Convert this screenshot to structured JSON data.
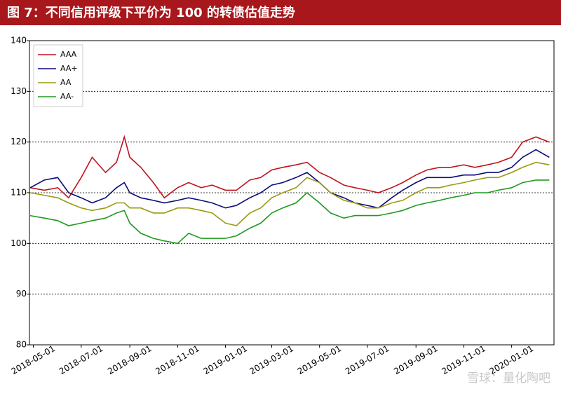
{
  "chart_data": {
    "type": "line",
    "title": "图 7：不同信用评级下平价为 100 的转债估值走势",
    "annotation": "雪球：量化陶吧",
    "x": [
      "2018-04-27",
      "2018-05-15",
      "2018-06-01",
      "2018-06-15",
      "2018-07-01",
      "2018-07-15",
      "2018-08-01",
      "2018-08-15",
      "2018-08-25",
      "2018-09-01",
      "2018-09-15",
      "2018-10-01",
      "2018-10-15",
      "2018-11-01",
      "2018-11-15",
      "2018-12-01",
      "2018-12-15",
      "2019-01-01",
      "2019-01-15",
      "2019-02-01",
      "2019-02-15",
      "2019-03-01",
      "2019-03-15",
      "2019-04-01",
      "2019-04-15",
      "2019-05-01",
      "2019-05-15",
      "2019-06-01",
      "2019-06-15",
      "2019-07-01",
      "2019-07-15",
      "2019-08-01",
      "2019-08-15",
      "2019-09-01",
      "2019-09-15",
      "2019-10-01",
      "2019-10-15",
      "2019-11-01",
      "2019-11-15",
      "2019-12-01",
      "2019-12-15",
      "2020-01-01",
      "2020-01-15",
      "2020-02-01",
      "2020-02-18"
    ],
    "series": [
      {
        "name": "AAA",
        "color": "#c0141e",
        "values": [
          111,
          110.5,
          111,
          109,
          113,
          117,
          114,
          116,
          121,
          117,
          115,
          112,
          109,
          111,
          112,
          111,
          111.5,
          110.5,
          110.5,
          112.5,
          113,
          114.5,
          115,
          115.5,
          116,
          114,
          113,
          111.5,
          111,
          110.5,
          110,
          111,
          112,
          113.5,
          114.5,
          115,
          115,
          115.5,
          115,
          115.5,
          116,
          117,
          120,
          121,
          120
        ]
      },
      {
        "name": "AA+",
        "color": "#0a0a78",
        "values": [
          111,
          112.5,
          113,
          110,
          109,
          108,
          109,
          111,
          112,
          110,
          109,
          108.5,
          108,
          108.5,
          109,
          108.5,
          108,
          107,
          107.5,
          109,
          110,
          111.5,
          112,
          113,
          114,
          112,
          110,
          109,
          108,
          107.5,
          107,
          109,
          110.5,
          112,
          113,
          113,
          113,
          113.5,
          113.5,
          114,
          114,
          115,
          117,
          118.5,
          117
        ]
      },
      {
        "name": "AA",
        "color": "#9a9a10",
        "values": [
          110,
          109.5,
          109,
          108,
          107,
          106.5,
          107,
          108,
          108,
          107,
          107,
          106,
          106,
          107,
          107,
          106.5,
          106,
          104,
          103.5,
          106,
          107,
          109,
          110,
          111,
          113,
          112,
          110,
          108.5,
          108,
          107,
          107,
          108,
          108.5,
          110,
          111,
          111,
          111.5,
          112,
          112.5,
          113,
          113,
          114,
          115,
          116,
          115.5
        ]
      },
      {
        "name": "AA-",
        "color": "#1e9a1e",
        "values": [
          105.5,
          105,
          104.5,
          103.5,
          104,
          104.5,
          105,
          106,
          106.5,
          104,
          102,
          101,
          100.5,
          100,
          102,
          101,
          101,
          101,
          101.5,
          103,
          104,
          106,
          107,
          108,
          110,
          108,
          106,
          105,
          105.5,
          105.5,
          105.5,
          106,
          106.5,
          107.5,
          108,
          108.5,
          109,
          109.5,
          110,
          110,
          110.5,
          111,
          112,
          112.5,
          112.5
        ]
      }
    ],
    "xlim": [
      "2018-04-26",
      "2020-02-24"
    ],
    "xticks": [
      "2018-05-01",
      "2018-07-01",
      "2018-09-01",
      "2018-11-01",
      "2019-01-01",
      "2019-03-01",
      "2019-05-01",
      "2019-07-01",
      "2019-09-01",
      "2019-11-01",
      "2020-01-01"
    ],
    "ylim": [
      80,
      140
    ],
    "yticks": [
      80,
      90,
      100,
      110,
      120,
      130,
      140
    ],
    "grid": true,
    "legend": "upper left"
  }
}
